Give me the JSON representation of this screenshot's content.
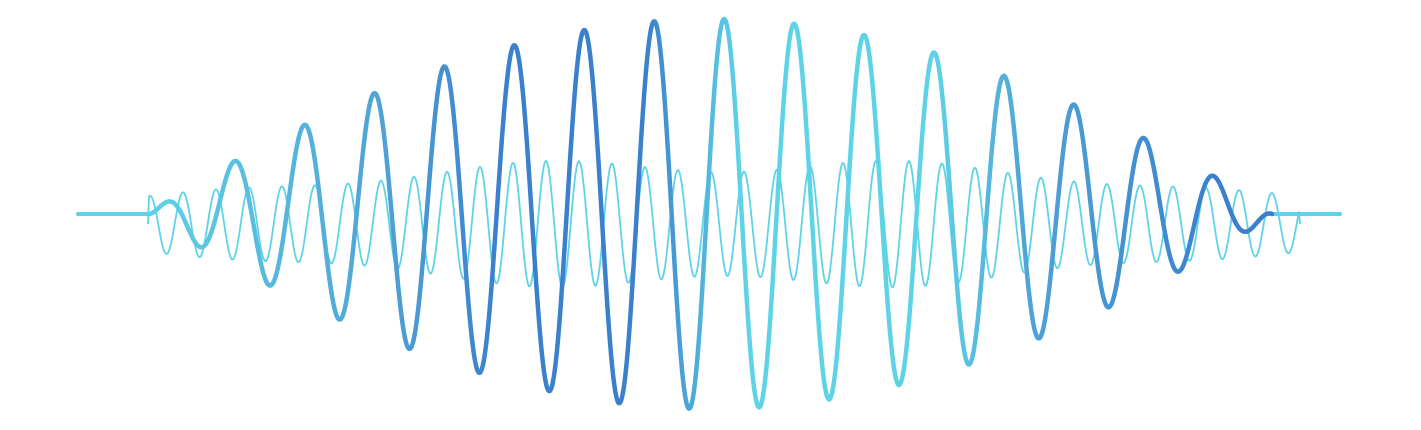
{
  "artwork": {
    "subject": "sound-wave",
    "background_color": "#ffffff",
    "colors": {
      "bold_dark": "#3a80cc",
      "bold_mid": "#4fa3d6",
      "bold_light": "#5fd3e6",
      "thin": "#5fd3e6",
      "baseline": "#5fd3e6"
    },
    "layers": [
      {
        "name": "thin-wave",
        "style": "thin"
      },
      {
        "name": "bold-wave",
        "style": "bold"
      }
    ]
  }
}
